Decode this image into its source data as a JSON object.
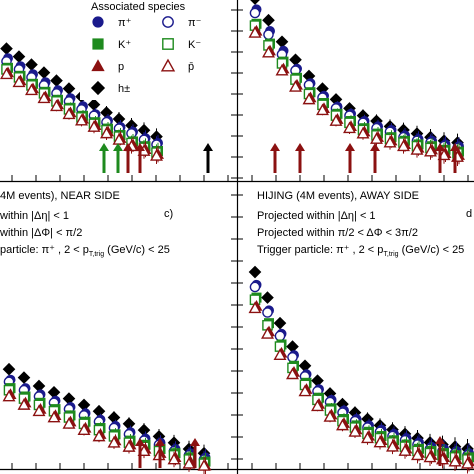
{
  "colors": {
    "pi_plus": "#1a1a8c",
    "k_plus": "#1e8a1e",
    "p": "#8b1111",
    "h": "#000000"
  },
  "legend": {
    "title": "Associated species",
    "items": [
      {
        "label": "π⁺",
        "marker": "filled-circle",
        "color": "#1a1a8c"
      },
      {
        "label": "π⁻",
        "marker": "open-circle",
        "color": "#1a1a8c"
      },
      {
        "label": "K⁺",
        "marker": "filled-square",
        "color": "#1e8a1e"
      },
      {
        "label": "K⁻",
        "marker": "open-square",
        "color": "#1e8a1e"
      },
      {
        "label": "p",
        "marker": "filled-triangle",
        "color": "#8b1111"
      },
      {
        "label": "p̄",
        "marker": "open-triangle",
        "color": "#8b1111"
      },
      {
        "label": "h±",
        "marker": "filled-diamond",
        "color": "#000000"
      }
    ]
  },
  "panels": {
    "bottom_left": {
      "title": "4M events), NEAR SIDE",
      "tag": "c)",
      "line1": "within |Δη| < 1",
      "line2": "within |ΔΦ| < π/2",
      "line3": "particle:  π⁺ , 2 < p",
      "line3_sub": "T,trig",
      "line3_end": " (GeV/c) < 25"
    },
    "bottom_right": {
      "title": "HIJING (4M events), AWAY SIDE",
      "tag": "d",
      "line1": "Projected within |Δη| < 1",
      "line2": "Projected within π/2 < ΔΦ < 3π/2",
      "line3": "Trigger particle:  π⁺ , 2 < p",
      "line3_sub": "T,trig",
      "line3_end": " (GeV/c) < 25"
    }
  },
  "chart_data": [
    {
      "type": "scatter",
      "panel": "top-left",
      "xlabel": "",
      "ylabel": "",
      "series": [
        {
          "name": "h±",
          "marker": "filled-diamond",
          "values": [
            0.84,
            0.79,
            0.74,
            0.69,
            0.64,
            0.59,
            0.54,
            0.49,
            0.44,
            0.39,
            0.35,
            0.31,
            0.28,
            0.24
          ]
        },
        {
          "name": "π⁺",
          "marker": "filled-circle",
          "values": [
            0.78,
            0.73,
            0.68,
            0.63,
            0.58,
            0.53,
            0.48,
            0.43,
            0.38,
            0.34,
            0.3,
            0.27,
            0.23,
            0.2
          ]
        },
        {
          "name": "π⁻",
          "marker": "open-circle",
          "values": [
            0.76,
            0.71,
            0.66,
            0.61,
            0.56,
            0.51,
            0.46,
            0.41,
            0.37,
            0.33,
            0.29,
            0.26,
            0.22,
            0.19
          ]
        },
        {
          "name": "K⁺",
          "marker": "filled-square",
          "values": [
            0.72,
            0.67,
            0.62,
            0.57,
            0.52,
            0.47,
            0.42,
            0.37,
            0.33,
            0.29,
            0.25,
            0.21,
            0.18,
            0.15
          ]
        },
        {
          "name": "K⁻",
          "marker": "open-square",
          "values": [
            0.71,
            0.66,
            0.61,
            0.56,
            0.51,
            0.46,
            0.41,
            0.36,
            0.32,
            0.28,
            0.24,
            0.2,
            0.17,
            0.14
          ]
        },
        {
          "name": "p",
          "marker": "filled-triangle",
          "values": [
            0.69,
            0.64,
            0.59,
            0.54,
            0.49,
            0.44,
            0.39,
            0.35,
            0.31,
            0.27,
            0.23,
            0.19,
            0.16,
            0.13
          ]
        },
        {
          "name": "p̄",
          "marker": "open-triangle",
          "values": [
            0.68,
            0.63,
            0.58,
            0.53,
            0.48,
            0.43,
            0.38,
            0.34,
            0.3,
            0.26,
            0.22,
            0.18,
            0.15,
            0.12
          ]
        }
      ]
    },
    {
      "type": "scatter",
      "panel": "top-right",
      "xlabel": "",
      "ylabel": "",
      "series": [
        {
          "name": "h±",
          "marker": "filled-diamond",
          "values": [
            0.98,
            0.86,
            0.74,
            0.64,
            0.55,
            0.48,
            0.42,
            0.37,
            0.33,
            0.3,
            0.27,
            0.25,
            0.23,
            0.21,
            0.19,
            0.18
          ]
        },
        {
          "name": "π⁺",
          "marker": "filled-circle",
          "values": [
            0.92,
            0.8,
            0.69,
            0.59,
            0.51,
            0.44,
            0.38,
            0.34,
            0.3,
            0.27,
            0.25,
            0.22,
            0.2,
            0.19,
            0.17,
            0.16
          ]
        },
        {
          "name": "π⁻",
          "marker": "open-circle",
          "values": [
            0.9,
            0.78,
            0.67,
            0.58,
            0.5,
            0.43,
            0.37,
            0.33,
            0.29,
            0.26,
            0.24,
            0.21,
            0.19,
            0.18,
            0.16,
            0.15
          ]
        },
        {
          "name": "K⁺",
          "marker": "filled-square",
          "values": [
            0.84,
            0.73,
            0.63,
            0.54,
            0.46,
            0.4,
            0.34,
            0.3,
            0.26,
            0.23,
            0.21,
            0.19,
            0.17,
            0.16,
            0.14,
            0.13
          ]
        },
        {
          "name": "K⁻",
          "marker": "open-square",
          "values": [
            0.83,
            0.72,
            0.62,
            0.53,
            0.45,
            0.39,
            0.33,
            0.29,
            0.25,
            0.22,
            0.2,
            0.18,
            0.16,
            0.15,
            0.13,
            0.12
          ]
        },
        {
          "name": "p",
          "marker": "filled-triangle",
          "values": [
            0.8,
            0.69,
            0.59,
            0.5,
            0.43,
            0.37,
            0.31,
            0.27,
            0.24,
            0.21,
            0.19,
            0.17,
            0.15,
            0.14,
            0.12,
            0.11
          ]
        },
        {
          "name": "p̄",
          "marker": "open-triangle",
          "values": [
            0.79,
            0.68,
            0.58,
            0.49,
            0.42,
            0.36,
            0.3,
            0.26,
            0.23,
            0.2,
            0.18,
            0.16,
            0.14,
            0.13,
            0.11,
            0.1
          ]
        }
      ]
    },
    {
      "type": "scatter",
      "panel": "bottom-left",
      "xlabel": "",
      "ylabel": "",
      "series": [
        {
          "name": "h±",
          "marker": "filled-diamond",
          "values": [
            0.52,
            0.48,
            0.44,
            0.4,
            0.37,
            0.34,
            0.31,
            0.28,
            0.25,
            0.22,
            0.19,
            0.16,
            0.13,
            0.1,
            0.08
          ]
        },
        {
          "name": "π⁺",
          "marker": "filled-circle",
          "values": [
            0.47,
            0.43,
            0.39,
            0.36,
            0.33,
            0.3,
            0.27,
            0.24,
            0.21,
            0.18,
            0.15,
            0.13,
            0.1,
            0.08,
            0.06
          ]
        },
        {
          "name": "π⁻",
          "marker": "open-circle",
          "values": [
            0.46,
            0.42,
            0.38,
            0.35,
            0.32,
            0.29,
            0.26,
            0.23,
            0.2,
            0.17,
            0.14,
            0.12,
            0.09,
            0.07,
            0.05
          ]
        },
        {
          "name": "K⁺",
          "marker": "filled-square",
          "values": [
            0.43,
            0.39,
            0.35,
            0.32,
            0.29,
            0.26,
            0.23,
            0.2,
            0.17,
            0.14,
            0.12,
            0.1,
            0.08,
            0.06,
            0.04
          ]
        },
        {
          "name": "K⁻",
          "marker": "open-square",
          "values": [
            0.42,
            0.38,
            0.34,
            0.31,
            0.28,
            0.25,
            0.22,
            0.19,
            0.16,
            0.13,
            0.11,
            0.09,
            0.07,
            0.05,
            0.03
          ]
        },
        {
          "name": "p",
          "marker": "filled-triangle",
          "values": [
            0.4,
            0.36,
            0.32,
            0.29,
            0.26,
            0.23,
            0.2,
            0.17,
            0.14,
            0.12,
            0.1,
            0.08,
            0.06,
            0.04,
            0.02
          ]
        },
        {
          "name": "p̄",
          "marker": "open-triangle",
          "values": [
            0.39,
            0.35,
            0.31,
            0.28,
            0.25,
            0.22,
            0.19,
            0.16,
            0.13,
            0.11,
            0.09,
            0.07,
            0.05,
            0.03,
            0.02
          ]
        }
      ]
    },
    {
      "type": "scatter",
      "panel": "bottom-right",
      "xlabel": "",
      "ylabel": "",
      "series": [
        {
          "name": "h±",
          "marker": "filled-diamond",
          "values": [
            0.92,
            0.8,
            0.68,
            0.57,
            0.48,
            0.41,
            0.35,
            0.3,
            0.26,
            0.23,
            0.2,
            0.18,
            0.16,
            0.14,
            0.12,
            0.11,
            0.1,
            0.09
          ]
        },
        {
          "name": "π⁺",
          "marker": "filled-circle",
          "values": [
            0.86,
            0.74,
            0.63,
            0.53,
            0.44,
            0.37,
            0.32,
            0.27,
            0.23,
            0.2,
            0.18,
            0.16,
            0.14,
            0.12,
            0.1,
            0.09,
            0.08,
            0.07
          ]
        },
        {
          "name": "π⁻",
          "marker": "open-circle",
          "values": [
            0.85,
            0.73,
            0.62,
            0.52,
            0.43,
            0.36,
            0.31,
            0.26,
            0.22,
            0.19,
            0.17,
            0.15,
            0.13,
            0.11,
            0.09,
            0.08,
            0.07,
            0.06
          ]
        },
        {
          "name": "K⁺",
          "marker": "filled-square",
          "values": [
            0.8,
            0.68,
            0.58,
            0.48,
            0.4,
            0.33,
            0.28,
            0.23,
            0.2,
            0.17,
            0.15,
            0.13,
            0.11,
            0.09,
            0.08,
            0.07,
            0.06,
            0.05
          ]
        },
        {
          "name": "K⁻",
          "marker": "open-square",
          "values": [
            0.79,
            0.67,
            0.57,
            0.47,
            0.39,
            0.32,
            0.27,
            0.22,
            0.19,
            0.16,
            0.14,
            0.12,
            0.1,
            0.08,
            0.07,
            0.06,
            0.05,
            0.04
          ]
        },
        {
          "name": "p",
          "marker": "filled-triangle",
          "values": [
            0.76,
            0.64,
            0.54,
            0.45,
            0.37,
            0.3,
            0.25,
            0.21,
            0.18,
            0.15,
            0.13,
            0.11,
            0.09,
            0.07,
            0.06,
            0.05,
            0.04,
            0.03
          ]
        },
        {
          "name": "p̄",
          "marker": "open-triangle",
          "values": [
            0.75,
            0.63,
            0.53,
            0.44,
            0.36,
            0.29,
            0.24,
            0.2,
            0.17,
            0.14,
            0.12,
            0.1,
            0.08,
            0.06,
            0.05,
            0.04,
            0.03,
            0.02
          ]
        }
      ]
    }
  ]
}
